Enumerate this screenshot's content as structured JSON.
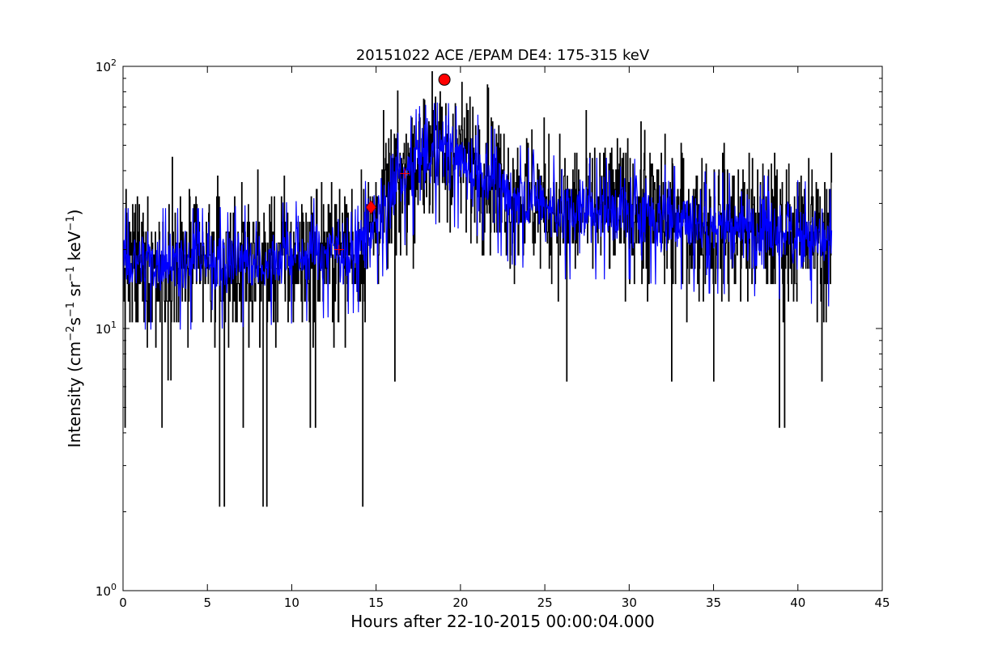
{
  "chart_data": {
    "type": "line",
    "title": "20151022 ACE /EPAM DE4: 175-315 keV",
    "xlabel": "Hours after 22-10-2015 00:00:04.000",
    "ylabel": {
      "main": "Intensity (cm",
      "parts": [
        {
          "text": "Intensity (cm",
          "sup": false
        },
        {
          "text": "−2",
          "sup": true
        },
        {
          "text": "s",
          "sup": false
        },
        {
          "text": "−1",
          "sup": true
        },
        {
          "text": " sr",
          "sup": false
        },
        {
          "text": "−1",
          "sup": true
        },
        {
          "text": " keV",
          "sup": false
        },
        {
          "text": "−1",
          "sup": true
        },
        {
          "text": ")",
          "sup": false
        }
      ]
    },
    "xlim": [
      0,
      45
    ],
    "ylim": [
      1,
      100
    ],
    "yscale": "log",
    "x_ticks": [
      0,
      5,
      10,
      15,
      20,
      25,
      30,
      35,
      40,
      45
    ],
    "y_ticks": [
      {
        "value": 1,
        "base": "10",
        "exp": "0"
      },
      {
        "value": 10,
        "base": "10",
        "exp": "1"
      },
      {
        "value": 100,
        "base": "10",
        "exp": "2"
      }
    ],
    "series": [
      {
        "color": "#000000",
        "x_range": [
          0,
          42
        ],
        "baseline": [
          [
            0,
            17
          ],
          [
            5,
            17
          ],
          [
            10,
            18
          ],
          [
            14,
            20
          ],
          [
            16,
            33
          ],
          [
            17.5,
            45
          ],
          [
            19,
            47
          ],
          [
            21,
            42
          ],
          [
            23,
            32
          ],
          [
            26,
            28
          ],
          [
            30,
            28
          ],
          [
            34,
            25
          ],
          [
            38,
            24
          ],
          [
            42,
            22
          ]
        ],
        "dips": [
          [
            0.1,
            4.2
          ],
          [
            2.3,
            4.2
          ],
          [
            5.7,
            2.1
          ],
          [
            6.0,
            2.1
          ],
          [
            7.1,
            4.2
          ],
          [
            8.3,
            2.1
          ],
          [
            8.5,
            2.1
          ],
          [
            11.1,
            4.2
          ],
          [
            11.4,
            4.2
          ],
          [
            14.2,
            2.1
          ],
          [
            16.1,
            6.3
          ],
          [
            26.3,
            6.3
          ],
          [
            32.5,
            6.3
          ],
          [
            35.0,
            6.3
          ],
          [
            38.9,
            4.2
          ],
          [
            39.2,
            4.2
          ],
          [
            41.4,
            6.3
          ]
        ],
        "peaks": [
          [
            2.9,
            45
          ],
          [
            17.8,
            75
          ],
          [
            18.8,
            80
          ],
          [
            21.6,
            85
          ],
          [
            30.9,
            57
          ]
        ]
      },
      {
        "color": "#0000ff",
        "x_range": [
          0,
          42
        ],
        "baseline": [
          [
            0,
            18
          ],
          [
            5,
            18
          ],
          [
            10,
            19
          ],
          [
            14,
            21
          ],
          [
            16,
            33
          ],
          [
            17.5,
            44
          ],
          [
            19,
            46
          ],
          [
            21,
            41
          ],
          [
            23,
            32
          ],
          [
            26,
            28
          ],
          [
            30,
            28
          ],
          [
            34,
            25
          ],
          [
            38,
            24
          ],
          [
            42,
            22
          ]
        ]
      }
    ],
    "markers": [
      {
        "shape": "plus",
        "x": 12.8,
        "y": 20,
        "color": "#ff0000"
      },
      {
        "shape": "diamond",
        "x": 14.7,
        "y": 29,
        "color": "#ff0000"
      },
      {
        "shape": "plus",
        "x": 16.7,
        "y": 39,
        "color": "#ff0000"
      },
      {
        "shape": "circle",
        "x": 19.05,
        "y": 89,
        "color": "#ff0000"
      }
    ]
  }
}
